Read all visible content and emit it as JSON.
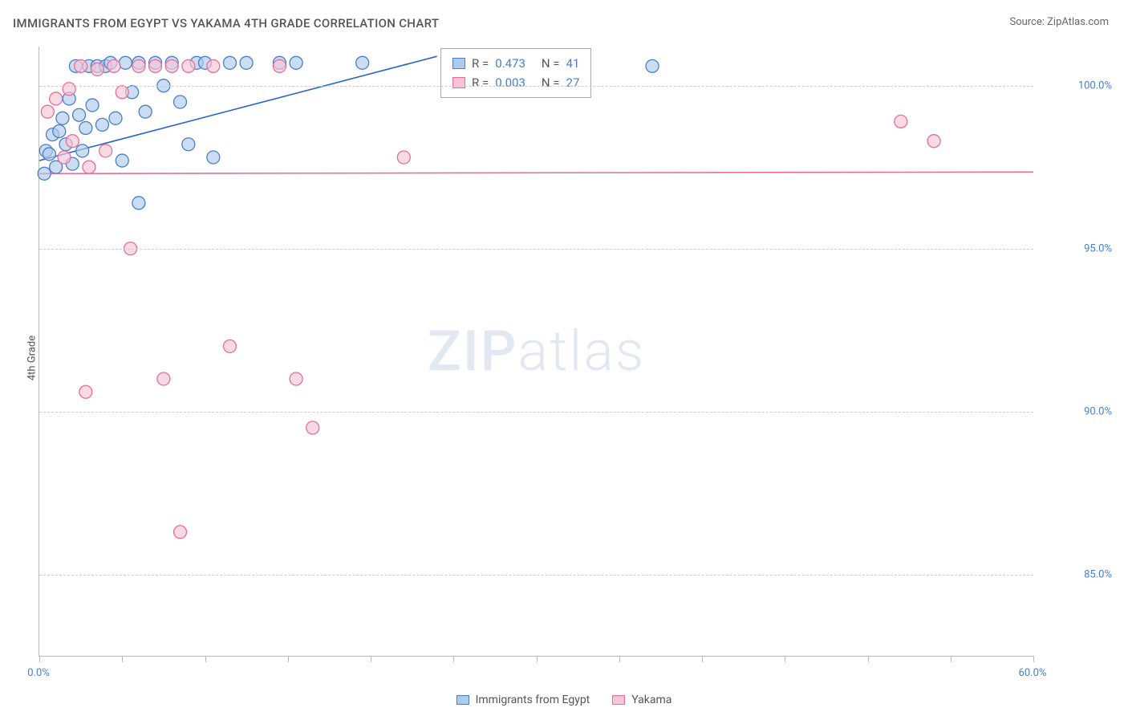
{
  "title": "IMMIGRANTS FROM EGYPT VS YAKAMA 4TH GRADE CORRELATION CHART",
  "source_label": "Source: ",
  "source_name": "ZipAtlas.com",
  "y_axis_label": "4th Grade",
  "watermark": {
    "bold": "ZIP",
    "light": "atlas"
  },
  "chart": {
    "type": "scatter",
    "xlim": [
      0,
      60
    ],
    "ylim": [
      82.5,
      101.2
    ],
    "x_ticks": [
      0,
      5,
      10,
      15,
      20,
      25,
      30,
      35,
      40,
      45,
      50,
      55,
      60
    ],
    "x_tick_labels": {
      "0": "0.0%",
      "60": "60.0%"
    },
    "y_grid": [
      85,
      90,
      95,
      100
    ],
    "y_tick_labels": {
      "85": "85.0%",
      "90": "90.0%",
      "95": "95.0%",
      "100": "100.0%"
    },
    "background_color": "#ffffff",
    "grid_color": "#cccccc",
    "axis_color": "#bbbbbb",
    "tick_label_color": "#4a7ec9",
    "marker_radius": 8,
    "marker_stroke_width": 1.3,
    "trend_line_width": 1.6,
    "series": [
      {
        "name": "Immigrants from Egypt",
        "fill": "#aecbeb",
        "stroke": "#4a7ec9",
        "fill_opacity": 0.65,
        "trend": {
          "x1": 0,
          "y1": 97.7,
          "x2": 24,
          "y2": 100.9,
          "color": "#2a66c4"
        },
        "stats": {
          "R": "0.473",
          "N": "41"
        },
        "points": [
          [
            0.3,
            97.3
          ],
          [
            0.4,
            98.0
          ],
          [
            0.6,
            97.9
          ],
          [
            0.8,
            98.5
          ],
          [
            1.0,
            97.5
          ],
          [
            1.2,
            98.6
          ],
          [
            1.4,
            99.0
          ],
          [
            1.6,
            98.2
          ],
          [
            1.8,
            99.6
          ],
          [
            2.0,
            97.6
          ],
          [
            2.2,
            100.6
          ],
          [
            2.4,
            99.1
          ],
          [
            2.6,
            98.0
          ],
          [
            2.8,
            98.7
          ],
          [
            3.0,
            100.6
          ],
          [
            3.2,
            99.4
          ],
          [
            3.5,
            100.6
          ],
          [
            3.8,
            98.8
          ],
          [
            4.0,
            100.6
          ],
          [
            4.3,
            100.7
          ],
          [
            4.6,
            99.0
          ],
          [
            5.0,
            97.7
          ],
          [
            5.2,
            100.7
          ],
          [
            5.6,
            99.8
          ],
          [
            6.0,
            100.7
          ],
          [
            6.4,
            99.2
          ],
          [
            7.0,
            100.7
          ],
          [
            7.5,
            100.0
          ],
          [
            8.0,
            100.7
          ],
          [
            8.5,
            99.5
          ],
          [
            9.0,
            98.2
          ],
          [
            9.5,
            100.7
          ],
          [
            10.0,
            100.7
          ],
          [
            10.5,
            97.8
          ],
          [
            11.5,
            100.7
          ],
          [
            12.5,
            100.7
          ],
          [
            14.5,
            100.7
          ],
          [
            15.5,
            100.7
          ],
          [
            19.5,
            100.7
          ],
          [
            37.0,
            100.6
          ],
          [
            6.0,
            96.4
          ]
        ]
      },
      {
        "name": "Yakama",
        "fill": "#f6c6d6",
        "stroke": "#e86e9a",
        "fill_opacity": 0.65,
        "trend": {
          "x1": 0,
          "y1": 97.3,
          "x2": 60,
          "y2": 97.35,
          "color": "#e86e9a"
        },
        "stats": {
          "R": "0.003",
          "N": "27"
        },
        "points": [
          [
            0.5,
            99.2
          ],
          [
            1.0,
            99.6
          ],
          [
            1.5,
            97.8
          ],
          [
            1.8,
            99.9
          ],
          [
            2.0,
            98.3
          ],
          [
            2.5,
            100.6
          ],
          [
            2.8,
            90.6
          ],
          [
            3.0,
            97.5
          ],
          [
            3.5,
            100.5
          ],
          [
            4.0,
            98.0
          ],
          [
            4.5,
            100.6
          ],
          [
            5.0,
            99.8
          ],
          [
            5.5,
            95.0
          ],
          [
            6.0,
            100.6
          ],
          [
            7.0,
            100.6
          ],
          [
            7.5,
            91.0
          ],
          [
            8.0,
            100.6
          ],
          [
            8.5,
            86.3
          ],
          [
            9.0,
            100.6
          ],
          [
            10.5,
            100.6
          ],
          [
            11.5,
            92.0
          ],
          [
            15.5,
            91.0
          ],
          [
            16.5,
            89.5
          ],
          [
            14.5,
            100.6
          ],
          [
            22.0,
            97.8
          ],
          [
            52.0,
            98.9
          ],
          [
            54.0,
            98.3
          ]
        ]
      }
    ]
  },
  "stat_box": {
    "R_label": "R =",
    "N_label": "N ="
  },
  "legend_bottom": [
    {
      "label": "Immigrants from Egypt",
      "series_idx": 0
    },
    {
      "label": "Yakama",
      "series_idx": 1
    }
  ]
}
